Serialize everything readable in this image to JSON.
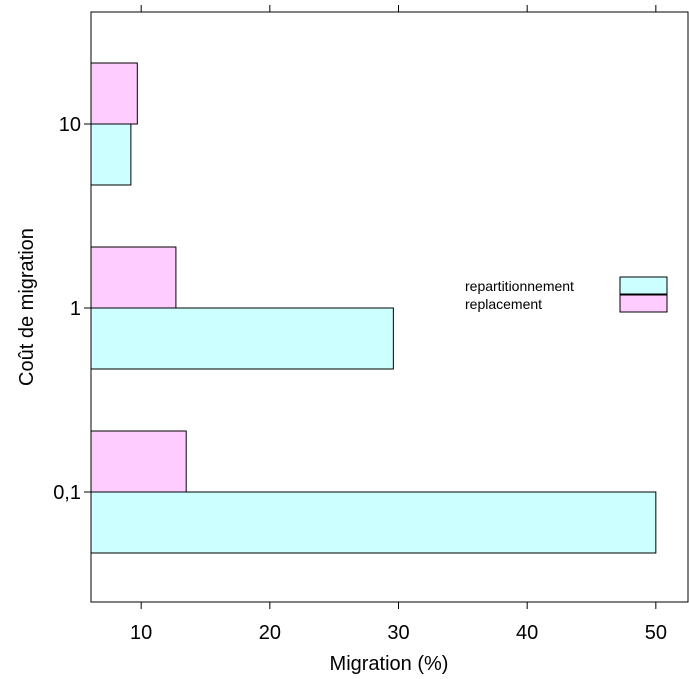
{
  "chart_data": {
    "type": "bar",
    "orientation": "horizontal",
    "title": "",
    "xlabel": "Migration (%)",
    "ylabel": "Coût de migration",
    "categories": [
      "0,1",
      "1",
      "10"
    ],
    "series": [
      {
        "name": "repartitionnement",
        "values": [
          50.0,
          29.6,
          9.2
        ],
        "color": "#ccffff"
      },
      {
        "name": "replacement",
        "values": [
          13.5,
          12.7,
          9.7
        ],
        "color": "#ffccff"
      }
    ],
    "xlim": [
      6.1,
      52.5
    ],
    "xticks": [
      {
        "value": 10,
        "label": "10"
      },
      {
        "value": 20,
        "label": "20"
      },
      {
        "value": 30,
        "label": "30"
      },
      {
        "value": 40,
        "label": "40"
      },
      {
        "value": 50,
        "label": "50"
      }
    ],
    "grid": false,
    "legend": {
      "position": "right",
      "entries": [
        "repartitionnement",
        "replacement"
      ]
    }
  }
}
